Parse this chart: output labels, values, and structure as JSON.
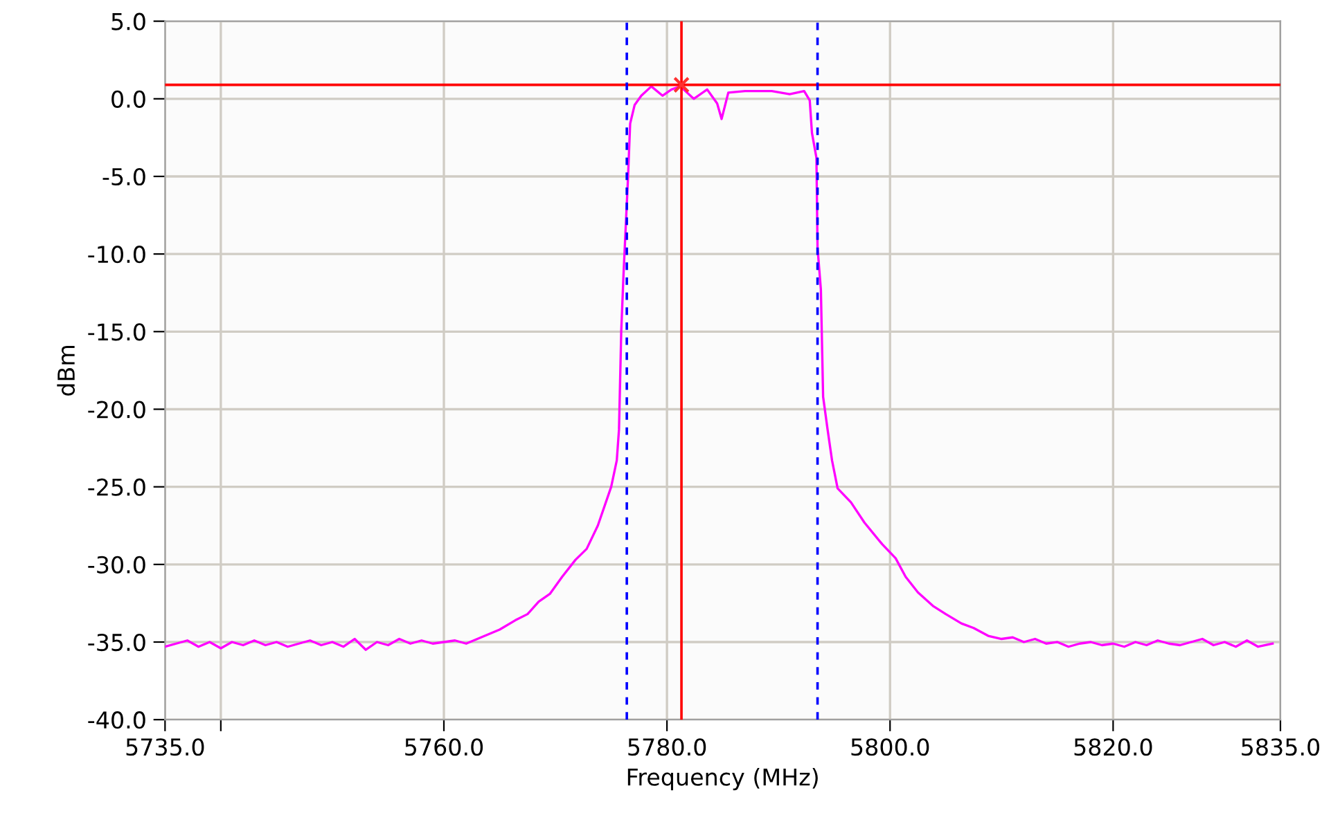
{
  "chart_data": {
    "type": "line",
    "xlabel": "Frequency (MHz)",
    "ylabel": "dBm",
    "xlim": [
      5735,
      5835
    ],
    "ylim": [
      -40,
      5
    ],
    "xticks": [
      {
        "value": 5735,
        "label": "5735.0"
      },
      {
        "value": 5740,
        "label": null
      },
      {
        "value": 5760,
        "label": "5760.0"
      },
      {
        "value": 5780,
        "label": "5780.0"
      },
      {
        "value": 5800,
        "label": "5800.0"
      },
      {
        "value": 5820,
        "label": "5820.0"
      },
      {
        "value": 5835,
        "label": "5835.0"
      }
    ],
    "yticks": [
      {
        "value": 5,
        "label": "5.0"
      },
      {
        "value": 0,
        "label": "0.0"
      },
      {
        "value": -5,
        "label": "-5.0"
      },
      {
        "value": -10,
        "label": "-10.0"
      },
      {
        "value": -15,
        "label": "-15.0"
      },
      {
        "value": -20,
        "label": "-20.0"
      },
      {
        "value": -25,
        "label": "-25.0"
      },
      {
        "value": -30,
        "label": "-30.0"
      },
      {
        "value": -35,
        "label": "-35.0"
      },
      {
        "value": -40,
        "label": "-40.0"
      }
    ],
    "grid": true,
    "series": [
      {
        "color": "#ff00ff",
        "x": [
          5735,
          5736,
          5737,
          5738,
          5739,
          5740,
          5741,
          5742,
          5743,
          5744,
          5745,
          5746,
          5747,
          5748,
          5749,
          5750,
          5751,
          5752,
          5753,
          5754,
          5755,
          5756,
          5757,
          5758,
          5759,
          5760,
          5761,
          5762,
          5763,
          5764,
          5765,
          5766.4,
          5767.5,
          5768.5,
          5769.5,
          5770.6,
          5771.8,
          5772.8,
          5773.8,
          5775,
          5775.5,
          5775.7,
          5775.9,
          5776.1,
          5776.5,
          5776.7,
          5777.1,
          5777.7,
          5778.6,
          5779.6,
          5780.4,
          5781.2,
          5782.4,
          5783.6,
          5784.5,
          5784.9,
          5785.5,
          5787,
          5789.4,
          5791,
          5792.3,
          5792.8,
          5793,
          5793.4,
          5793.5,
          5793.8,
          5794,
          5794.4,
          5794.8,
          5795.3,
          5796.5,
          5797.7,
          5799.3,
          5800.5,
          5801.4,
          5802.5,
          5803.9,
          5805,
          5806.4,
          5807.5,
          5808.8,
          5810,
          5811,
          5812,
          5813,
          5814,
          5815,
          5816,
          5817,
          5818,
          5819,
          5820,
          5821,
          5822,
          5823,
          5824,
          5825,
          5826,
          5827,
          5828,
          5829,
          5830,
          5831,
          5832,
          5833,
          5834.3
        ],
        "values": [
          -35.3,
          -35.1,
          -34.9,
          -35.3,
          -35.0,
          -35.4,
          -35.0,
          -35.2,
          -34.9,
          -35.2,
          -35.0,
          -35.3,
          -35.1,
          -34.9,
          -35.2,
          -35.0,
          -35.3,
          -34.8,
          -35.5,
          -35.0,
          -35.2,
          -34.8,
          -35.1,
          -34.9,
          -35.1,
          -35.0,
          -34.9,
          -35.1,
          -34.8,
          -34.5,
          -34.2,
          -33.6,
          -33.2,
          -32.4,
          -31.9,
          -30.8,
          -29.7,
          -29.0,
          -27.5,
          -25.0,
          -23.3,
          -21.3,
          -15.0,
          -11.4,
          -5.2,
          -1.6,
          -0.4,
          0.2,
          0.8,
          0.2,
          0.6,
          0.8,
          0.0,
          0.6,
          -0.3,
          -1.3,
          0.4,
          0.5,
          0.5,
          0.3,
          0.5,
          -0.1,
          -2.2,
          -3.8,
          -9.6,
          -12.3,
          -19.2,
          -21.3,
          -23.3,
          -25.1,
          -26.0,
          -27.3,
          -28.7,
          -29.6,
          -30.8,
          -31.8,
          -32.7,
          -33.2,
          -33.8,
          -34.1,
          -34.6,
          -34.8,
          -34.7,
          -35.0,
          -34.8,
          -35.1,
          -35.0,
          -35.3,
          -35.1,
          -35.0,
          -35.2,
          -35.1,
          -35.3,
          -35.0,
          -35.2,
          -34.9,
          -35.1,
          -35.2,
          -35.0,
          -34.8,
          -35.2,
          -35.0,
          -35.3,
          -34.9,
          -35.3,
          -35.1
        ]
      },
      {
        "type": "scatter",
        "color": "#ff3030",
        "marker": "cross",
        "x": [
          5781.3
        ],
        "values": [
          0.9
        ]
      }
    ],
    "ref_lines": [
      {
        "axis": "y",
        "value": 0.9,
        "color": "#ff0000",
        "line_style": "solid"
      },
      {
        "axis": "x",
        "value": 5781.3,
        "color": "#ff0000",
        "line_style": "solid"
      },
      {
        "axis": "x",
        "value": 5776.4,
        "color": "#0000ff",
        "line_style": "dashed"
      },
      {
        "axis": "x",
        "value": 5793.5,
        "color": "#0000ff",
        "line_style": "dashed"
      }
    ]
  }
}
